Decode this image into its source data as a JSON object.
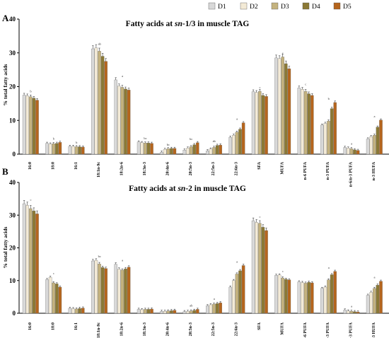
{
  "legend": [
    "D1",
    "D2",
    "D3",
    "D4",
    "D5"
  ],
  "colors": [
    "#d9d9d9",
    "#f3ead6",
    "#c4b27e",
    "#8b7935",
    "#b5651d"
  ],
  "chart_data": [
    {
      "panel": "A",
      "type": "bar",
      "title_parts": [
        "Fatty acids at ",
        "sn",
        "-1/3 in muscle TAG"
      ],
      "ylabel": "% total fatty acids",
      "ylim": [
        0,
        40
      ],
      "yticks": [
        0,
        10,
        20,
        30,
        40
      ],
      "categories": [
        "16:0",
        "18:0",
        "16:1",
        "18:1n-9c",
        "18:2n-6",
        "18:3n-3",
        "20:4n-6",
        "20:5n-3",
        "22:5n-3",
        "22:6n-3",
        "SFA",
        "MUFA",
        "n-6 PUFA",
        "n-3 PUFA",
        "n-6/n-3 PUFA",
        "n-3 HUFA"
      ],
      "series": [
        {
          "name": "D1",
          "values": [
            17.5,
            3.2,
            2.3,
            31.2,
            22.0,
            3.6,
            0.6,
            1.2,
            1.0,
            5.0,
            18.5,
            28.5,
            19.6,
            8.6,
            2.0,
            4.5
          ]
        },
        {
          "name": "D2",
          "values": [
            17.3,
            3.0,
            2.3,
            31.5,
            20.2,
            3.4,
            1.4,
            1.8,
            1.5,
            5.6,
            18.3,
            28.3,
            19.2,
            9.1,
            1.8,
            5.2
          ]
        },
        {
          "name": "D3",
          "values": [
            17.0,
            3.1,
            2.2,
            30.5,
            19.8,
            3.3,
            1.6,
            2.2,
            2.0,
            6.5,
            18.6,
            28.8,
            18.6,
            9.8,
            1.6,
            5.6
          ]
        },
        {
          "name": "D4",
          "values": [
            16.6,
            3.2,
            2.2,
            29.0,
            19.3,
            3.3,
            1.7,
            2.8,
            2.6,
            7.4,
            17.4,
            26.8,
            17.9,
            13.5,
            1.3,
            8.0
          ]
        },
        {
          "name": "D5",
          "values": [
            16.0,
            3.5,
            2.1,
            27.5,
            19.0,
            3.2,
            1.7,
            3.4,
            2.7,
            9.3,
            17.1,
            25.3,
            17.4,
            15.3,
            1.1,
            10.1
          ]
        }
      ],
      "significance_letters": [
        "b",
        "b",
        "b",
        "ab",
        "a",
        "bc",
        "bc",
        "bc",
        "ab",
        "a",
        "c",
        "c",
        "c",
        "b",
        "a",
        "a"
      ]
    },
    {
      "panel": "B",
      "type": "bar",
      "title_parts": [
        "Fatty acids at ",
        "sn",
        "-2 in muscle TAG"
      ],
      "ylabel": "% total fatty acids",
      "ylim": [
        0,
        40
      ],
      "yticks": [
        0,
        10,
        20,
        30,
        40
      ],
      "categories": [
        "16:0",
        "18:0",
        "16:1",
        "18:1n-9c",
        "18:2n-6",
        "18:3n-3",
        "20:4n-6",
        "20:5n-3",
        "22:5n-3",
        "22:6n-3",
        "SFA",
        "MUFA",
        "n-6 PUFA",
        "n-3 PUFA",
        "n-6/n-3 PUFA",
        "n-3 HUFA"
      ],
      "series": [
        {
          "name": "D1",
          "values": [
            33.5,
            10.3,
            1.5,
            16.0,
            15.0,
            1.2,
            0.6,
            0.5,
            2.3,
            8.0,
            28.3,
            11.6,
            9.6,
            7.6,
            1.0,
            5.5
          ]
        },
        {
          "name": "D2",
          "values": [
            33.0,
            11.0,
            1.4,
            16.2,
            13.5,
            1.1,
            0.6,
            0.6,
            2.6,
            10.0,
            27.8,
            11.7,
            9.4,
            8.0,
            0.7,
            6.4
          ]
        },
        {
          "name": "D3",
          "values": [
            32.0,
            9.3,
            1.3,
            15.1,
            13.2,
            1.2,
            0.7,
            0.7,
            2.8,
            12.0,
            27.5,
            10.8,
            9.2,
            10.2,
            0.6,
            7.6
          ]
        },
        {
          "name": "D4",
          "values": [
            31.3,
            9.0,
            1.5,
            14.0,
            13.6,
            1.2,
            0.8,
            0.9,
            3.0,
            13.0,
            26.3,
            10.4,
            9.5,
            11.8,
            0.5,
            8.6
          ]
        },
        {
          "name": "D5",
          "values": [
            30.4,
            8.0,
            1.6,
            13.7,
            14.1,
            1.3,
            0.9,
            1.2,
            3.2,
            14.6,
            25.3,
            10.2,
            9.3,
            12.8,
            0.4,
            9.8
          ]
        }
      ],
      "significance_letters": [
        "c",
        "c",
        "",
        "bc",
        "a",
        "",
        "",
        "ab",
        "a",
        "a",
        "c",
        "c",
        "",
        "a",
        "a",
        "a"
      ]
    }
  ]
}
